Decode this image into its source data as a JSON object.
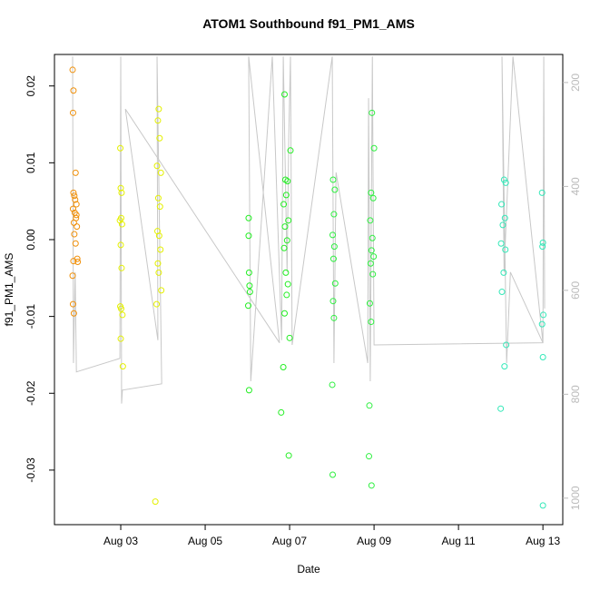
{
  "chart_data": {
    "type": "scatter",
    "title": "ATOM1 Southbound f91_PM1_AMS",
    "x_label": "Date",
    "y_label": "f91_PM1_AMS",
    "xlim": [
      1.43,
      13.47
    ],
    "xticks": [
      {
        "value": 3,
        "label": "Aug 03"
      },
      {
        "value": 5,
        "label": "Aug 05"
      },
      {
        "value": 7,
        "label": "Aug 07"
      },
      {
        "value": 9,
        "label": "Aug 09"
      },
      {
        "value": 11,
        "label": "Aug 11"
      },
      {
        "value": 13,
        "label": "Aug 13"
      }
    ],
    "ylim": [
      -0.0371,
      0.0241
    ],
    "yticks": [
      -0.03,
      -0.02,
      -0.01,
      {
        "value": 0,
        "label": "0.00"
      },
      0.01,
      0.02
    ],
    "y2lim": [
      1051,
      146
    ],
    "y2ticks": [
      200,
      400,
      600,
      800,
      1000
    ],
    "series": [
      {
        "type": "scatter",
        "color": "#F0900A",
        "x": [
          1.86,
          1.88,
          1.87,
          1.93,
          1.88,
          1.9,
          1.92,
          1.95,
          1.87,
          1.91,
          1.94,
          1.89,
          1.96,
          1.9,
          1.93,
          1.97,
          1.88,
          1.86,
          1.98,
          1.87,
          1.89,
          1.95
        ],
        "values": [
          0.0221,
          0.0194,
          0.0165,
          0.0087,
          0.0061,
          0.0057,
          0.0052,
          0.0046,
          0.004,
          0.0035,
          0.0028,
          0.0022,
          0.0017,
          0.0007,
          -0.0005,
          -0.0025,
          -0.0028,
          -0.0047,
          -0.0029,
          -0.0084,
          -0.0096,
          0.0032
        ]
      },
      {
        "type": "scatter",
        "color": "#E4F000",
        "x": [
          2.99,
          3.0,
          3.02,
          3.01,
          2.98,
          3.03,
          3.0,
          3.02,
          2.99,
          3.01,
          3.04,
          3.0,
          3.05,
          3.9,
          3.88,
          3.92,
          3.86,
          3.95,
          3.89,
          3.93,
          3.87,
          3.91,
          3.94,
          3.88,
          3.9,
          3.96,
          3.85,
          3.82
        ],
        "values": [
          0.0119,
          0.0067,
          0.0061,
          0.0028,
          0.0025,
          0.002,
          -0.0007,
          -0.0037,
          -0.0087,
          -0.009,
          -0.0098,
          -0.0129,
          -0.0165,
          0.017,
          0.0155,
          0.0132,
          0.0096,
          0.0087,
          0.0054,
          0.0043,
          0.0011,
          0.0005,
          -0.0013,
          -0.0031,
          -0.0043,
          -0.0066,
          -0.0084,
          -0.0341
        ]
      },
      {
        "type": "scatter",
        "color": "#22EE22",
        "x": [
          6.03,
          6.03,
          6.04,
          6.05,
          6.06,
          6.02,
          6.04,
          6.88,
          6.9,
          6.95,
          6.92,
          6.86,
          6.97,
          6.89,
          6.94,
          6.87,
          6.91,
          6.96,
          6.93,
          6.88,
          7.0,
          6.85,
          6.8,
          6.98,
          7.02
        ],
        "values": [
          0.0028,
          0.0005,
          -0.0043,
          -0.006,
          -0.0068,
          -0.0086,
          -0.0196,
          0.0189,
          0.0078,
          0.0076,
          0.0058,
          0.0046,
          0.0025,
          0.0017,
          -0.0001,
          -0.0011,
          -0.0043,
          -0.0058,
          -0.0072,
          -0.0096,
          -0.0128,
          -0.0166,
          -0.0225,
          -0.0281,
          0.0116
        ]
      },
      {
        "type": "scatter",
        "color": "#2EF040",
        "x": [
          8.03,
          8.07,
          8.05,
          8.02,
          8.06,
          8.04,
          8.08,
          8.03,
          8.05,
          8.01,
          8.02,
          8.95,
          9.0,
          8.93,
          8.98,
          8.91,
          8.96,
          8.94,
          8.99,
          8.92,
          8.97,
          8.9,
          8.93,
          8.89,
          8.88,
          8.94
        ],
        "values": [
          0.0078,
          0.0065,
          0.0033,
          0.0006,
          -0.0009,
          -0.0025,
          -0.0057,
          -0.008,
          -0.0102,
          -0.0189,
          -0.0306,
          0.0165,
          0.0119,
          0.0061,
          0.0054,
          0.0025,
          0.0002,
          -0.0014,
          -0.0022,
          -0.0031,
          -0.0045,
          -0.0083,
          -0.0107,
          -0.0216,
          -0.0282,
          -0.032
        ]
      },
      {
        "type": "scatter",
        "color": "#33E8B8",
        "x": [
          12.08,
          12.12,
          12.02,
          12.1,
          12.05,
          12.01,
          12.11,
          12.07,
          12.03,
          12.13,
          12.09,
          12.0,
          12.98,
          13.0,
          12.99,
          13.01,
          12.98,
          13.0,
          13.0
        ],
        "values": [
          0.0078,
          0.0074,
          0.0046,
          0.0028,
          0.0019,
          -0.0005,
          -0.0013,
          -0.0043,
          -0.0068,
          -0.0137,
          -0.0165,
          -0.022,
          0.0061,
          -0.0004,
          -0.0009,
          -0.0098,
          -0.011,
          -0.0153,
          -0.0346
        ]
      },
      {
        "type": "line",
        "axis": "y2",
        "color": "#C8C8C8",
        "x": [
          1.86,
          1.88,
          1.92,
          1.95,
          2.98,
          3.0,
          3.02,
          3.04,
          3.97,
          3.86,
          3.88,
          3.11,
          6.76,
          6.03,
          6.08,
          6.59,
          6.81,
          6.85,
          6.94,
          6.98,
          7.02,
          7.06,
          8.01,
          8.05,
          8.1,
          8.85,
          8.87,
          8.91,
          8.96,
          9.0,
          13.0,
          12.29,
          12.08,
          12.03,
          12.14,
          12.23,
          13.0,
          13.02,
          13.04
        ],
        "values": [
          150,
          740,
          565,
          757,
          731,
          150,
          818,
          792,
          780,
          150,
          696,
          251,
          701,
          150,
          775,
          150,
          696,
          150,
          565,
          303,
          150,
          705,
          150,
          740,
          373,
          740,
          230,
          775,
          150,
          705,
          701,
          150,
          565,
          150,
          740,
          565,
          701,
          150,
          635
        ]
      }
    ]
  }
}
